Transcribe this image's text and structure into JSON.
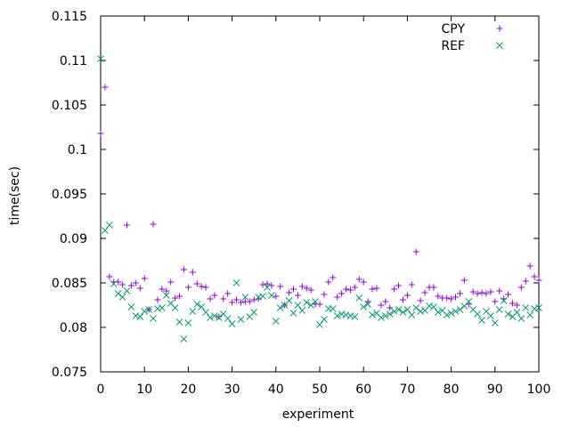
{
  "chart_data": {
    "type": "scatter",
    "xlabel": "experiment",
    "ylabel": "time(sec)",
    "xlim": [
      0,
      100
    ],
    "ylim": [
      0.075,
      0.115
    ],
    "xticks": [
      0,
      10,
      20,
      30,
      40,
      50,
      60,
      70,
      80,
      90,
      100
    ],
    "yticks": [
      0.075,
      0.08,
      0.085,
      0.09,
      0.095,
      0.1,
      0.105,
      0.11,
      0.115
    ],
    "ytick_labels": [
      "0.075",
      "0.08",
      "0.085",
      "0.09",
      "0.095",
      "0.1",
      "0.105",
      "0.11",
      "0.115"
    ],
    "grid": false,
    "legend_position": "top-right",
    "series": [
      {
        "name": "CPY",
        "marker": "plus",
        "color": "#9400d3",
        "x": [
          0,
          1,
          2,
          3,
          4,
          5,
          6,
          7,
          8,
          9,
          10,
          11,
          12,
          13,
          14,
          15,
          16,
          17,
          18,
          19,
          20,
          21,
          22,
          23,
          24,
          25,
          26,
          27,
          28,
          29,
          30,
          31,
          32,
          33,
          34,
          35,
          36,
          37,
          38,
          39,
          40,
          41,
          42,
          43,
          44,
          45,
          46,
          47,
          48,
          49,
          50,
          51,
          52,
          53,
          54,
          55,
          56,
          57,
          58,
          59,
          60,
          61,
          62,
          63,
          64,
          65,
          66,
          67,
          68,
          69,
          70,
          71,
          72,
          73,
          74,
          75,
          76,
          77,
          78,
          79,
          80,
          81,
          82,
          83,
          84,
          85,
          86,
          87,
          88,
          89,
          90,
          91,
          92,
          93,
          94,
          95,
          96,
          97,
          98,
          99,
          100
        ],
        "y": [
          0.1018,
          0.107,
          0.0857,
          0.0851,
          0.0851,
          0.0848,
          0.0915,
          0.0847,
          0.085,
          0.0844,
          0.0855,
          0.082,
          0.0916,
          0.0831,
          0.0843,
          0.0841,
          0.0851,
          0.0833,
          0.0835,
          0.0865,
          0.0845,
          0.0862,
          0.0849,
          0.0846,
          0.0845,
          0.0832,
          0.0836,
          0.0812,
          0.0832,
          0.0838,
          0.0828,
          0.0831,
          0.0828,
          0.0829,
          0.0829,
          0.0831,
          0.0832,
          0.0848,
          0.0849,
          0.0847,
          0.0835,
          0.0846,
          0.0825,
          0.0839,
          0.0843,
          0.0836,
          0.0846,
          0.0844,
          0.0842,
          0.0826,
          0.0826,
          0.0837,
          0.0851,
          0.0856,
          0.0834,
          0.0838,
          0.0843,
          0.0842,
          0.0845,
          0.0854,
          0.0851,
          0.0829,
          0.0843,
          0.0844,
          0.0825,
          0.0829,
          0.0822,
          0.0843,
          0.0847,
          0.0831,
          0.0836,
          0.0848,
          0.0885,
          0.083,
          0.0839,
          0.0845,
          0.0845,
          0.0835,
          0.0833,
          0.0833,
          0.0832,
          0.0834,
          0.0838,
          0.0853,
          0.0826,
          0.084,
          0.0838,
          0.0839,
          0.0838,
          0.084,
          0.0829,
          0.0841,
          0.0832,
          0.0837,
          0.0827,
          0.0825,
          0.0845,
          0.0852,
          0.0869,
          0.0857,
          0.0853
        ]
      },
      {
        "name": "REF",
        "marker": "cross",
        "color": "#009e73",
        "x": [
          0,
          1,
          2,
          3,
          4,
          5,
          6,
          7,
          8,
          9,
          10,
          11,
          12,
          13,
          14,
          15,
          16,
          17,
          18,
          19,
          20,
          21,
          22,
          23,
          24,
          25,
          26,
          27,
          28,
          29,
          30,
          31,
          32,
          33,
          34,
          35,
          36,
          37,
          38,
          39,
          40,
          41,
          42,
          43,
          44,
          45,
          46,
          47,
          48,
          49,
          50,
          51,
          52,
          53,
          54,
          55,
          56,
          57,
          58,
          59,
          60,
          61,
          62,
          63,
          64,
          65,
          66,
          67,
          68,
          69,
          70,
          71,
          72,
          73,
          74,
          75,
          76,
          77,
          78,
          79,
          80,
          81,
          82,
          83,
          84,
          85,
          86,
          87,
          88,
          89,
          90,
          91,
          92,
          93,
          94,
          95,
          96,
          97,
          98,
          99,
          100
        ],
        "y": [
          0.1102,
          0.0909,
          0.0915,
          0.0849,
          0.0838,
          0.0834,
          0.0841,
          0.0823,
          0.0813,
          0.0812,
          0.0818,
          0.082,
          0.081,
          0.0821,
          0.0822,
          0.0836,
          0.0827,
          0.0822,
          0.0806,
          0.0787,
          0.0805,
          0.0818,
          0.0826,
          0.0823,
          0.0817,
          0.0811,
          0.0813,
          0.0811,
          0.0815,
          0.081,
          0.0804,
          0.085,
          0.0809,
          0.0834,
          0.0812,
          0.0817,
          0.0834,
          0.0835,
          0.0845,
          0.0836,
          0.0807,
          0.0822,
          0.0825,
          0.083,
          0.0816,
          0.0825,
          0.0819,
          0.0828,
          0.0825,
          0.0829,
          0.0803,
          0.0809,
          0.0821,
          0.0821,
          0.0813,
          0.0815,
          0.0814,
          0.0813,
          0.0812,
          0.0833,
          0.0823,
          0.0826,
          0.0814,
          0.0816,
          0.0811,
          0.0813,
          0.0815,
          0.0818,
          0.082,
          0.0817,
          0.082,
          0.0814,
          0.0822,
          0.0818,
          0.0819,
          0.0824,
          0.0823,
          0.0817,
          0.0819,
          0.0814,
          0.0816,
          0.0818,
          0.082,
          0.0824,
          0.0829,
          0.082,
          0.0815,
          0.0808,
          0.0818,
          0.0813,
          0.0805,
          0.082,
          0.083,
          0.0815,
          0.0812,
          0.0817,
          0.081,
          0.0822,
          0.0814,
          0.0821,
          0.0822
        ]
      }
    ]
  }
}
